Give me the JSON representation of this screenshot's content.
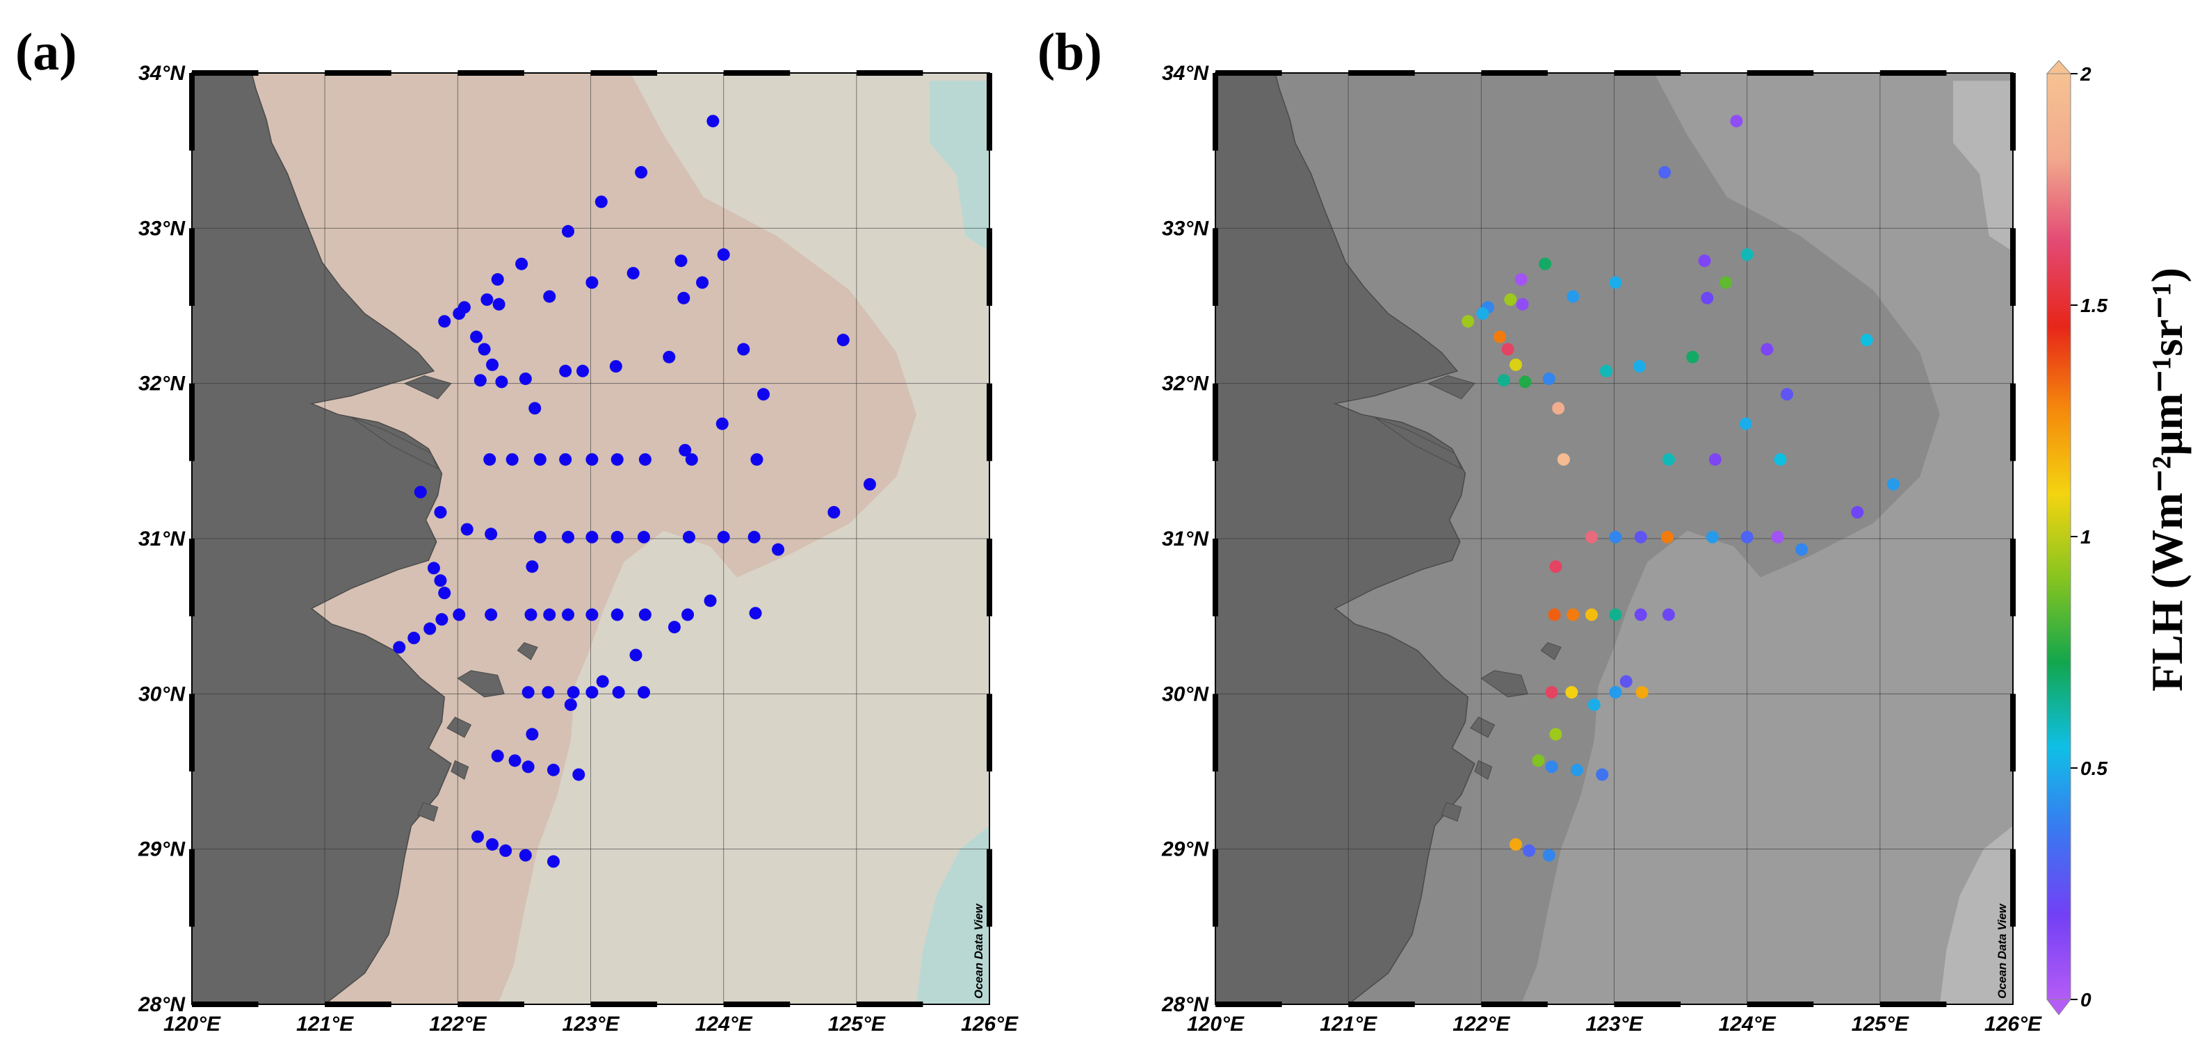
{
  "panels": [
    {
      "label": "(a)"
    },
    {
      "label": "(b)"
    }
  ],
  "map": {
    "lon_range": [
      120,
      126
    ],
    "lat_range": [
      28,
      34
    ],
    "lon_ticks": [
      120,
      121,
      122,
      123,
      124,
      125,
      126
    ],
    "lat_ticks": [
      28,
      29,
      30,
      31,
      32,
      33,
      34
    ],
    "lon_labels": [
      "120°E",
      "121°E",
      "122°E",
      "123°E",
      "124°E",
      "125°E",
      "126°E"
    ],
    "lat_labels": [
      "28°N",
      "29°N",
      "30°N",
      "31°N",
      "32°N",
      "33°N",
      "34°N"
    ],
    "credit": "Ocean Data View",
    "colors": {
      "land": "#666666",
      "shelf_a": "#d5c0b3",
      "sea_a": "#d8d4c8",
      "deep_a": "#b9d8d4",
      "shelf_b": "#8a8a8a",
      "sea_b": "#9c9c9c",
      "deep_b": "#b6b6b6",
      "station_a": "#0f06ef"
    }
  },
  "colorbar": {
    "title": "FLH (Wm⁻²µm⁻¹sr⁻¹)",
    "min": 0,
    "max": 2,
    "ticks": [
      {
        "value": 0,
        "label": "0"
      },
      {
        "value": 0.5,
        "label": "0.5"
      },
      {
        "value": 1,
        "label": "1"
      },
      {
        "value": 1.5,
        "label": "1.5"
      },
      {
        "value": 2,
        "label": "2"
      }
    ],
    "stops": [
      "#b45cf5",
      "#7340f5",
      "#3a78f0",
      "#10bfe6",
      "#12a64e",
      "#86c420",
      "#f3d411",
      "#f58a0c",
      "#e6261a",
      "#e34a74",
      "#f1a98d",
      "#f6c292"
    ]
  },
  "stations": [
    {
      "lon": 123.92,
      "lat": 33.69,
      "flh": 0.1
    },
    {
      "lon": 123.38,
      "lat": 33.36,
      "flh": 0.3
    },
    {
      "lon": 123.08,
      "lat": 33.17
    },
    {
      "lon": 122.83,
      "lat": 32.98
    },
    {
      "lon": 124.0,
      "lat": 32.83,
      "flh": 0.6
    },
    {
      "lon": 123.68,
      "lat": 32.79,
      "flh": 0.15
    },
    {
      "lon": 122.48,
      "lat": 32.77,
      "flh": 0.7
    },
    {
      "lon": 123.32,
      "lat": 32.71
    },
    {
      "lon": 122.3,
      "lat": 32.67,
      "flh": 0.05
    },
    {
      "lon": 123.01,
      "lat": 32.65,
      "flh": 0.5
    },
    {
      "lon": 123.84,
      "lat": 32.65,
      "flh": 0.85
    },
    {
      "lon": 122.69,
      "lat": 32.56,
      "flh": 0.45
    },
    {
      "lon": 123.7,
      "lat": 32.55,
      "flh": 0.2
    },
    {
      "lon": 122.22,
      "lat": 32.54,
      "flh": 0.95
    },
    {
      "lon": 122.31,
      "lat": 32.51,
      "flh": 0.1
    },
    {
      "lon": 122.05,
      "lat": 32.49,
      "flh": 0.4
    },
    {
      "lon": 122.01,
      "lat": 32.45,
      "flh": 0.5
    },
    {
      "lon": 121.9,
      "lat": 32.4,
      "flh": 0.95
    },
    {
      "lon": 122.14,
      "lat": 32.3,
      "flh": 1.3
    },
    {
      "lon": 124.9,
      "lat": 32.28,
      "flh": 0.55
    },
    {
      "lon": 124.15,
      "lat": 32.22,
      "flh": 0.15
    },
    {
      "lon": 122.2,
      "lat": 32.22,
      "flh": 1.6
    },
    {
      "lon": 123.59,
      "lat": 32.17,
      "flh": 0.7
    },
    {
      "lon": 122.26,
      "lat": 32.12,
      "flh": 1.05
    },
    {
      "lon": 123.19,
      "lat": 32.11,
      "flh": 0.5
    },
    {
      "lon": 122.81,
      "lat": 32.08
    },
    {
      "lon": 122.94,
      "lat": 32.08,
      "flh": 0.6
    },
    {
      "lon": 122.51,
      "lat": 32.03,
      "flh": 0.4
    },
    {
      "lon": 122.17,
      "lat": 32.02,
      "flh": 0.65
    },
    {
      "lon": 122.33,
      "lat": 32.01,
      "flh": 0.75
    },
    {
      "lon": 124.3,
      "lat": 31.93,
      "flh": 0.25
    },
    {
      "lon": 122.58,
      "lat": 31.84,
      "flh": 1.85
    },
    {
      "lon": 123.99,
      "lat": 31.74,
      "flh": 0.5
    },
    {
      "lon": 123.71,
      "lat": 31.57
    },
    {
      "lon": 122.24,
      "lat": 31.51
    },
    {
      "lon": 122.41,
      "lat": 31.51
    },
    {
      "lon": 122.62,
      "lat": 31.51,
      "flh": 1.95
    },
    {
      "lon": 122.81,
      "lat": 31.51
    },
    {
      "lon": 123.01,
      "lat": 31.51
    },
    {
      "lon": 123.2,
      "lat": 31.51
    },
    {
      "lon": 123.41,
      "lat": 31.51,
      "flh": 0.6
    },
    {
      "lon": 123.76,
      "lat": 31.51,
      "flh": 0.15
    },
    {
      "lon": 124.25,
      "lat": 31.51,
      "flh": 0.55
    },
    {
      "lon": 125.1,
      "lat": 31.35,
      "flh": 0.45
    },
    {
      "lon": 121.72,
      "lat": 31.3
    },
    {
      "lon": 121.87,
      "lat": 31.17
    },
    {
      "lon": 124.83,
      "lat": 31.17,
      "flh": 0.2
    },
    {
      "lon": 122.07,
      "lat": 31.06
    },
    {
      "lon": 122.25,
      "lat": 31.03
    },
    {
      "lon": 122.62,
      "lat": 31.01
    },
    {
      "lon": 122.83,
      "lat": 31.01,
      "flh": 1.7
    },
    {
      "lon": 123.01,
      "lat": 31.01,
      "flh": 0.4
    },
    {
      "lon": 123.2,
      "lat": 31.01,
      "flh": 0.25
    },
    {
      "lon": 123.4,
      "lat": 31.01,
      "flh": 1.3
    },
    {
      "lon": 123.74,
      "lat": 31.01,
      "flh": 0.45
    },
    {
      "lon": 124.0,
      "lat": 31.01,
      "flh": 0.3
    },
    {
      "lon": 124.23,
      "lat": 31.01,
      "flh": 0.05
    },
    {
      "lon": 124.41,
      "lat": 30.93,
      "flh": 0.4
    },
    {
      "lon": 122.56,
      "lat": 30.82,
      "flh": 1.6
    },
    {
      "lon": 121.82,
      "lat": 30.81
    },
    {
      "lon": 121.87,
      "lat": 30.73
    },
    {
      "lon": 121.9,
      "lat": 30.65
    },
    {
      "lon": 123.9,
      "lat": 30.6
    },
    {
      "lon": 124.24,
      "lat": 30.52
    },
    {
      "lon": 122.01,
      "lat": 30.51
    },
    {
      "lon": 122.25,
      "lat": 30.51
    },
    {
      "lon": 122.55,
      "lat": 30.51,
      "flh": 1.35
    },
    {
      "lon": 122.69,
      "lat": 30.51,
      "flh": 1.3
    },
    {
      "lon": 122.83,
      "lat": 30.51,
      "flh": 1.15
    },
    {
      "lon": 123.01,
      "lat": 30.51,
      "flh": 0.65
    },
    {
      "lon": 123.2,
      "lat": 30.51,
      "flh": 0.2
    },
    {
      "lon": 123.41,
      "lat": 30.51,
      "flh": 0.2
    },
    {
      "lon": 123.73,
      "lat": 30.51
    },
    {
      "lon": 121.88,
      "lat": 30.48
    },
    {
      "lon": 123.63,
      "lat": 30.43
    },
    {
      "lon": 121.79,
      "lat": 30.42
    },
    {
      "lon": 121.67,
      "lat": 30.36
    },
    {
      "lon": 121.56,
      "lat": 30.3
    },
    {
      "lon": 123.34,
      "lat": 30.25
    },
    {
      "lon": 123.09,
      "lat": 30.08,
      "flh": 0.25
    },
    {
      "lon": 122.53,
      "lat": 30.01,
      "flh": 1.6
    },
    {
      "lon": 122.68,
      "lat": 30.01,
      "flh": 1.1
    },
    {
      "lon": 122.87,
      "lat": 30.01
    },
    {
      "lon": 123.01,
      "lat": 30.01,
      "flh": 0.45
    },
    {
      "lon": 123.21,
      "lat": 30.01,
      "flh": 1.2
    },
    {
      "lon": 123.4,
      "lat": 30.01
    },
    {
      "lon": 122.85,
      "lat": 29.93,
      "flh": 0.5
    },
    {
      "lon": 122.56,
      "lat": 29.74,
      "flh": 0.95
    },
    {
      "lon": 122.3,
      "lat": 29.6
    },
    {
      "lon": 122.43,
      "lat": 29.57,
      "flh": 0.9
    },
    {
      "lon": 122.53,
      "lat": 29.53,
      "flh": 0.4
    },
    {
      "lon": 122.72,
      "lat": 29.51,
      "flh": 0.45
    },
    {
      "lon": 122.91,
      "lat": 29.48,
      "flh": 0.35
    },
    {
      "lon": 122.15,
      "lat": 29.08
    },
    {
      "lon": 122.26,
      "lat": 29.03,
      "flh": 1.2
    },
    {
      "lon": 122.36,
      "lat": 28.99,
      "flh": 0.3
    },
    {
      "lon": 122.51,
      "lat": 28.96,
      "flh": 0.4
    },
    {
      "lon": 122.72,
      "lat": 28.92
    }
  ]
}
